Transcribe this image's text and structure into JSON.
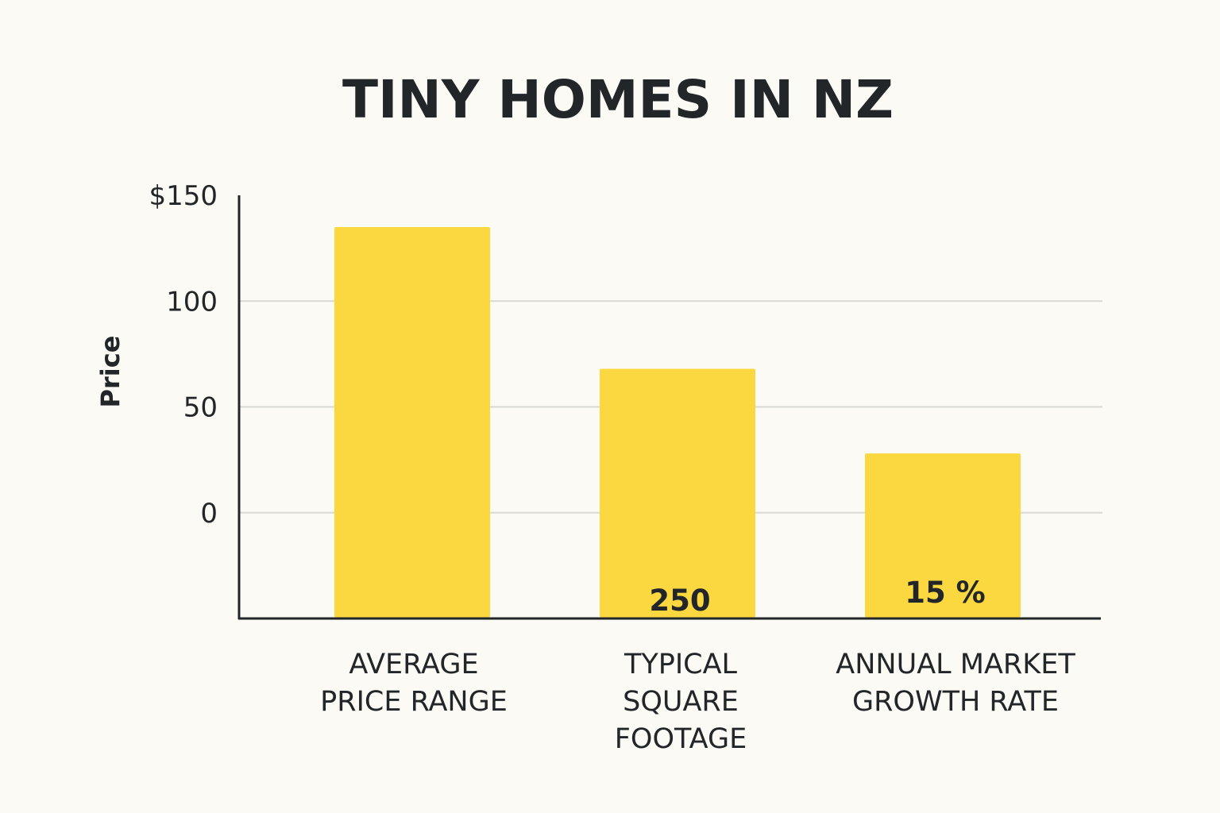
{
  "chart_data": {
    "type": "bar",
    "title": "TINY HOMES IN NZ",
    "ylabel": "Price",
    "xlabel": "",
    "ylim": [
      -50,
      150
    ],
    "yticks": [
      {
        "value": 150,
        "label": "$150"
      },
      {
        "value": 100,
        "label": "100"
      },
      {
        "value": 50,
        "label": "50"
      },
      {
        "value": 0,
        "label": "0"
      }
    ],
    "grid": true,
    "categories": [
      "AVERAGE PRICE RANGE",
      "TYPICAL SQUARE FOOTAGE",
      "ANNUAL MARKET GROWTH RATE"
    ],
    "category_lines": [
      [
        "AVERAGE",
        "PRICE RANGE"
      ],
      [
        "TYPICAL",
        "SQUARE",
        "FOOTAGE"
      ],
      [
        "ANNUAL MARKET",
        "GROWTH RATE"
      ]
    ],
    "values": [
      135,
      68,
      28
    ],
    "data_labels": [
      "",
      "250",
      "15 %"
    ],
    "colors": {
      "bar": "#fcd840",
      "text": "#222629",
      "axis": "#222629",
      "grid": "#d9d9d4",
      "background": "#fbfaf4"
    }
  }
}
